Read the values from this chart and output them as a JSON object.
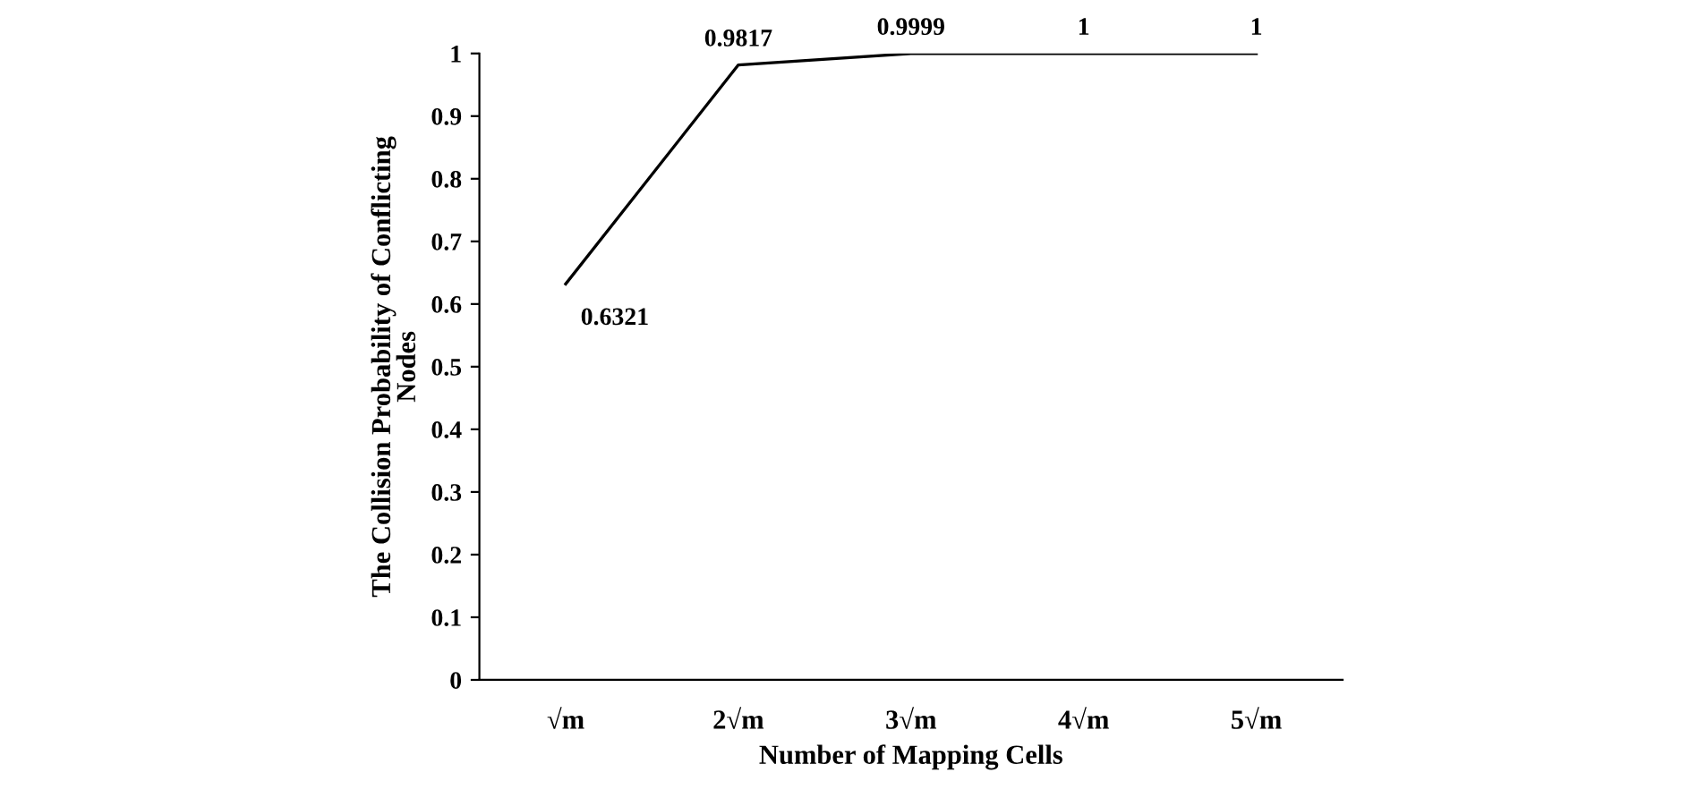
{
  "chart_data": {
    "type": "line",
    "xlabel": "Number of Mapping Cells",
    "ylabel": "The Collision Probability of Conflicting Nodes",
    "categories": [
      "√m",
      "2√m",
      "3√m",
      "4√m",
      "5√m"
    ],
    "series": [
      {
        "color": "#000000",
        "values": [
          0.6321,
          0.9817,
          0.9999,
          1,
          1
        ]
      }
    ],
    "ylim": [
      0,
      1
    ],
    "yticks": [
      0,
      0.1,
      0.2,
      0.3,
      0.4,
      0.5,
      0.6,
      0.7,
      0.8,
      0.9,
      1
    ],
    "data_labels": true,
    "grid": false,
    "legend": false,
    "marker": "none",
    "line_style": "solid"
  }
}
